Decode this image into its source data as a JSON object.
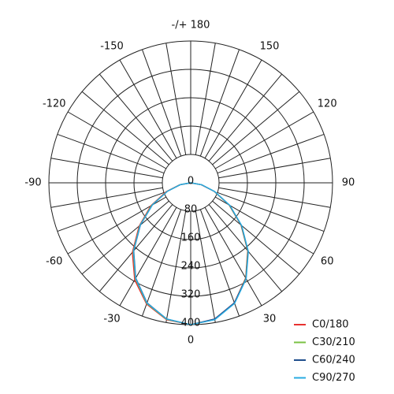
{
  "chart_data": {
    "type": "polar",
    "angles": [
      -90,
      -80,
      -70,
      -60,
      -50,
      -40,
      -30,
      -20,
      -10,
      0,
      10,
      20,
      30,
      40,
      50,
      60,
      70,
      80,
      90
    ],
    "series": [
      {
        "name": "C0/180",
        "color": "#e8312f",
        "values": [
          0,
          32,
          74,
          130,
          190,
          256,
          316,
          364,
          392,
          400,
          390,
          360,
          310,
          250,
          185,
          125,
          70,
          30,
          0
        ]
      },
      {
        "name": "C30/210",
        "color": "#7ac143",
        "values": [
          0,
          30,
          71,
          127,
          187,
          252,
          312,
          362,
          391,
          400,
          391,
          361,
          311,
          251,
          186,
          126,
          71,
          31,
          0
        ]
      },
      {
        "name": "C60/240",
        "color": "#1f4e8c",
        "values": [
          0,
          29,
          70,
          125,
          185,
          250,
          310,
          360,
          390,
          400,
          390,
          360,
          312,
          252,
          187,
          127,
          72,
          31,
          0
        ]
      },
      {
        "name": "C90/270",
        "color": "#29abe2",
        "values": [
          0,
          30,
          70,
          125,
          186,
          251,
          311,
          361,
          390,
          400,
          392,
          362,
          313,
          253,
          188,
          128,
          72,
          32,
          0
        ]
      }
    ],
    "rlim": [
      0,
      400
    ],
    "rticks": [
      0,
      80,
      160,
      240,
      320,
      400
    ],
    "thetaticks": [
      0,
      30,
      60,
      90,
      120,
      150,
      {
        "value": 180,
        "label": "-/+ 180"
      },
      -150,
      -120,
      -90,
      -60,
      -30
    ],
    "thetagrid": [
      0,
      10,
      20,
      30,
      40,
      50,
      60,
      70,
      80,
      90,
      100,
      110,
      120,
      130,
      140,
      150,
      160,
      170,
      180,
      -170,
      -160,
      -150,
      -140,
      -130,
      -120,
      -110,
      -100,
      -90,
      -80,
      -70,
      -60,
      -50,
      -40,
      -30,
      -20,
      -10
    ],
    "legend": "lower right"
  }
}
